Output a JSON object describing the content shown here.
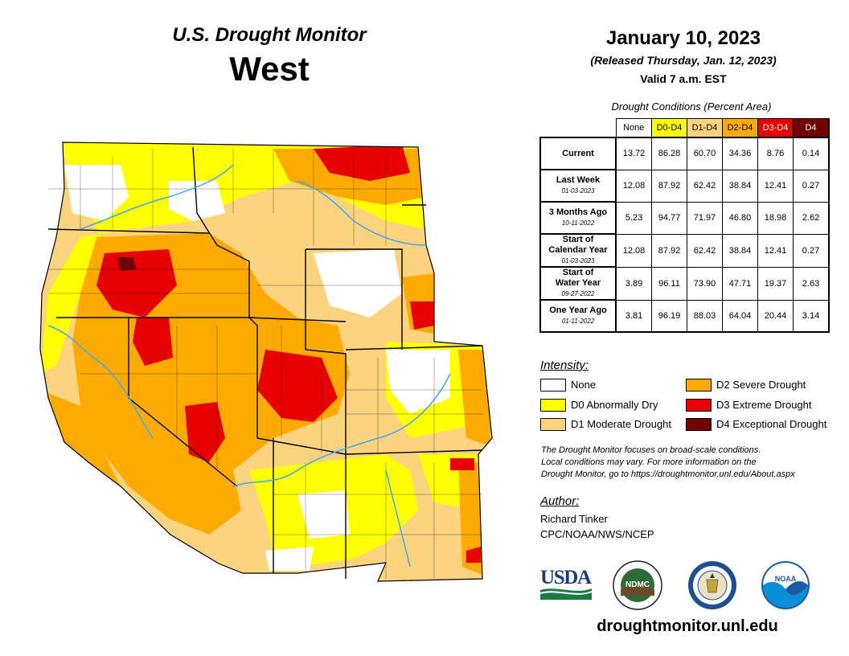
{
  "header": {
    "title": "U.S. Drought Monitor",
    "region": "West",
    "date": "January 10, 2023",
    "released": "(Released Thursday, Jan. 12, 2023)",
    "valid": "Valid 7 a.m. EST"
  },
  "conditions": {
    "caption": "Drought Conditions (Percent Area)",
    "columns": [
      "None",
      "D0-D4",
      "D1-D4",
      "D2-D4",
      "D3-D4",
      "D4"
    ],
    "column_colors": [
      "#ffffff",
      "#ffff00",
      "#fcd37f",
      "#ffaa00",
      "#e60000",
      "#730000"
    ],
    "rows": [
      {
        "label": "Current",
        "label2": "",
        "date": "",
        "values": [
          "13.72",
          "86.28",
          "60.70",
          "34.36",
          "8.76",
          "0.14"
        ]
      },
      {
        "label": "Last Week",
        "label2": "",
        "date": "01-03-2023",
        "values": [
          "12.08",
          "87.92",
          "62.42",
          "38.84",
          "12.41",
          "0.27"
        ]
      },
      {
        "label": "3 Months Ago",
        "label2": "",
        "date": "10-11-2022",
        "values": [
          "5.23",
          "94.77",
          "71.97",
          "46.80",
          "18.98",
          "2.62"
        ]
      },
      {
        "label": "Start of",
        "label2": "Calendar Year",
        "date": "01-03-2023",
        "values": [
          "12.08",
          "87.92",
          "62.42",
          "38.84",
          "12.41",
          "0.27"
        ]
      },
      {
        "label": "Start of",
        "label2": "Water Year",
        "date": "09-27-2022",
        "values": [
          "3.89",
          "96.11",
          "73.90",
          "47.71",
          "19.37",
          "2.63"
        ]
      },
      {
        "label": "One Year Ago",
        "label2": "",
        "date": "01-11-2022",
        "values": [
          "3.81",
          "96.19",
          "88.03",
          "64.04",
          "20.44",
          "3.14"
        ]
      }
    ]
  },
  "legend": {
    "title": "Intensity:",
    "items": [
      {
        "label": "None",
        "color": "#ffffff"
      },
      {
        "label": "D0 Abnormally Dry",
        "color": "#ffff00"
      },
      {
        "label": "D1 Moderate Drought",
        "color": "#fcd37f"
      },
      {
        "label": "D2 Severe Drought",
        "color": "#ffaa00"
      },
      {
        "label": "D3 Extreme Drought",
        "color": "#e60000"
      },
      {
        "label": "D4 Exceptional Drought",
        "color": "#730000"
      }
    ]
  },
  "note": {
    "line1": "The Drought Monitor focuses on broad-scale conditions.",
    "line2": "Local conditions may vary. For more information on the",
    "line3": "Drought Monitor, go to https://droughtmonitor.unl.edu/About.aspx"
  },
  "author": {
    "title": "Author:",
    "name": "Richard Tinker",
    "org": "CPC/NOAA/NWS/NCEP"
  },
  "logos": {
    "usda": "USDA",
    "ndmc": "NDMC",
    "noaa": "NOAA"
  },
  "footer": {
    "site": "droughtmonitor.unl.edu"
  }
}
